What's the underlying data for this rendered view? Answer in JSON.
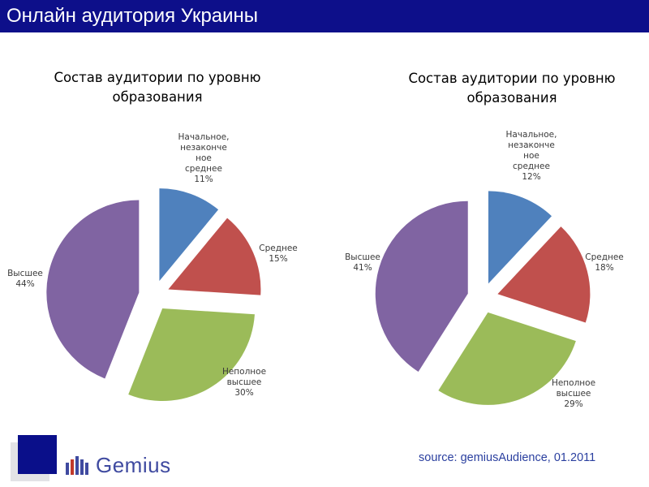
{
  "header": {
    "title": "Онлайн аудитория Украины"
  },
  "colors": {
    "header_bg": "#0d0f8a",
    "slice_colors": [
      "#4f81bd",
      "#c0504d",
      "#9bbb59",
      "#8064a2"
    ]
  },
  "chart_data": [
    {
      "type": "pie",
      "title": "Состав аудитории по уровню образования",
      "series": [
        {
          "label": "Начальное, незаконченное среднее",
          "label_lines": [
            "Начальное,",
            "незаконче",
            "ное",
            "среднее"
          ],
          "pct_text": "11%",
          "value": 11
        },
        {
          "label": "Среднее",
          "label_lines": [
            "Среднее"
          ],
          "pct_text": "15%",
          "value": 15
        },
        {
          "label": "Неполное высшее",
          "label_lines": [
            "Неполное",
            "высшее"
          ],
          "pct_text": "30%",
          "value": 30
        },
        {
          "label": "Высшее",
          "label_lines": [
            "Высшее"
          ],
          "pct_text": "44%",
          "value": 44
        }
      ]
    },
    {
      "type": "pie",
      "title": "Состав аудитории по уровню образования",
      "series": [
        {
          "label": "Начальное, незаконченное среднее",
          "label_lines": [
            "Начальное,",
            "незаконче",
            "ное",
            "среднее"
          ],
          "pct_text": "12%",
          "value": 12
        },
        {
          "label": "Среднее",
          "label_lines": [
            "Среднее"
          ],
          "pct_text": "18%",
          "value": 18
        },
        {
          "label": "Неполное высшее",
          "label_lines": [
            "Неполное",
            "высшее"
          ],
          "pct_text": "29%",
          "value": 29
        },
        {
          "label": "Высшее",
          "label_lines": [
            "Высшее"
          ],
          "pct_text": "41%",
          "value": 41
        }
      ]
    }
  ],
  "footer": {
    "logo_text": "Gemius",
    "source": "source: gemiusAudience, 01.2011"
  }
}
